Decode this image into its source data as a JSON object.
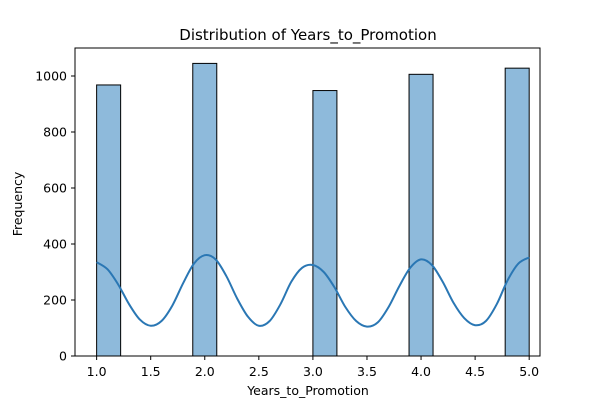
{
  "chart_data": {
    "type": "bar",
    "title": "Distribution of Years_to_Promotion",
    "xlabel": "Years_to_Promotion",
    "ylabel": "Frequency",
    "xlim": [
      0.8,
      5.1
    ],
    "ylim": [
      0,
      1100
    ],
    "x_ticks": [
      "1.0",
      "1.5",
      "2.0",
      "2.5",
      "3.0",
      "3.5",
      "4.0",
      "4.5",
      "5.0"
    ],
    "x_tick_values": [
      1.0,
      1.5,
      2.0,
      2.5,
      3.0,
      3.5,
      4.0,
      4.5,
      5.0
    ],
    "y_ticks": [
      "0",
      "200",
      "400",
      "600",
      "800",
      "1000"
    ],
    "y_tick_values": [
      0,
      200,
      400,
      600,
      800,
      1000
    ],
    "bins": [
      {
        "x_start": 1.0,
        "x_end": 1.222,
        "value": 968
      },
      {
        "x_start": 1.889,
        "x_end": 2.111,
        "value": 1045
      },
      {
        "x_start": 3.0,
        "x_end": 3.222,
        "value": 948
      },
      {
        "x_start": 3.889,
        "x_end": 4.111,
        "value": 1006
      },
      {
        "x_start": 4.778,
        "x_end": 5.0,
        "value": 1028
      }
    ],
    "kde": {
      "x": [
        1.0,
        1.1,
        1.2,
        1.3,
        1.4,
        1.5,
        1.6,
        1.7,
        1.8,
        1.9,
        2.0,
        2.1,
        2.2,
        2.3,
        2.4,
        2.5,
        2.6,
        2.7,
        2.8,
        2.9,
        3.0,
        3.1,
        3.2,
        3.3,
        3.4,
        3.5,
        3.6,
        3.7,
        3.8,
        3.9,
        4.0,
        4.1,
        4.2,
        4.3,
        4.4,
        4.5,
        4.6,
        4.7,
        4.8,
        4.9,
        5.0
      ],
      "y": [
        335,
        310,
        255,
        185,
        130,
        108,
        125,
        180,
        260,
        330,
        360,
        345,
        285,
        205,
        140,
        108,
        125,
        185,
        265,
        315,
        325,
        300,
        245,
        175,
        125,
        105,
        120,
        175,
        250,
        315,
        345,
        325,
        265,
        190,
        135,
        110,
        125,
        185,
        270,
        330,
        352
      ]
    },
    "bar_color": "#8ebadb",
    "bar_edge_color": "#000000",
    "kde_color": "#2a77b4",
    "grid": false,
    "legend": "none"
  }
}
